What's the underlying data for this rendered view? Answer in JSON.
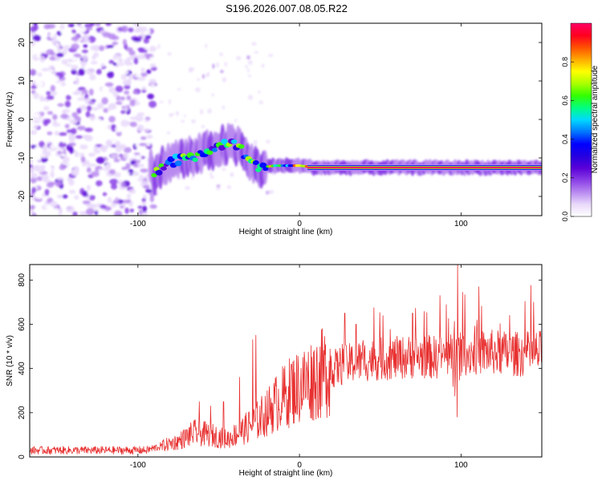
{
  "title": "S196.2026.007.08.05.R22",
  "chart_data": [
    {
      "type": "heatmap",
      "xlabel": "Height of straight line (km)",
      "ylabel": "Frequency (Hz)",
      "xlim": [
        -167,
        150
      ],
      "ylim": [
        -25,
        25
      ],
      "xticks": [
        -100,
        0,
        100
      ],
      "xtick_labels": [
        "-100",
        "0",
        "100"
      ],
      "yticks": [
        -20,
        -10,
        0,
        10,
        20
      ],
      "ytick_labels": [
        "-20",
        "-10",
        "0",
        "10",
        "20"
      ],
      "colorbar": {
        "label": "Normalized spectral amplitude",
        "range": [
          0,
          1
        ],
        "ticks": [
          0.0,
          0.2,
          0.4,
          0.6,
          0.8
        ],
        "tick_labels": [
          "0.0",
          "0.2",
          "0.4",
          "0.6",
          "0.8"
        ],
        "colormap": [
          "#ffffff",
          "#e9d9fb",
          "#b98af0",
          "#8a3fe6",
          "#5a00d8",
          "#2400e0",
          "#0000ff",
          "#0077ff",
          "#00d8ff",
          "#00ff80",
          "#33ff00",
          "#aaff00",
          "#ffff00",
          "#ffaa00",
          "#ff5000",
          "#ff0020",
          "#ff0066"
        ]
      },
      "regions": [
        {
          "name": "noise",
          "x_range": [
            -167,
            -90
          ],
          "freq_range": [
            -25,
            25
          ],
          "amplitude": 0.05
        },
        {
          "name": "trace",
          "points": [
            [
              -90,
              -14
            ],
            [
              -85,
              -12.5
            ],
            [
              -80,
              -11
            ],
            [
              -70,
              -10
            ],
            [
              -60,
              -9
            ],
            [
              -50,
              -7
            ],
            [
              -40,
              -6.5
            ],
            [
              -35,
              -8.5
            ],
            [
              -30,
              -11.5
            ],
            [
              -25,
              -12.5
            ],
            [
              -15,
              -12
            ],
            [
              0,
              -12
            ],
            [
              10,
              -12.5
            ],
            [
              150,
              -12.5
            ]
          ]
        }
      ]
    },
    {
      "type": "line",
      "xlabel": "Height of straight line (km)",
      "ylabel": "SNR (10 * v/v)",
      "xlim": [
        -167,
        150
      ],
      "ylim": [
        0,
        870
      ],
      "xticks": [
        -100,
        0,
        100
      ],
      "xtick_labels": [
        "-100",
        "0",
        "100"
      ],
      "yticks": [
        0,
        200,
        400,
        600,
        800
      ],
      "ytick_labels": [
        "0",
        "200",
        "400",
        "600",
        "800"
      ],
      "line_color": "#e83030",
      "envelope": [
        [
          -167,
          30
        ],
        [
          -95,
          30
        ],
        [
          -85,
          50
        ],
        [
          -75,
          70
        ],
        [
          -65,
          110
        ],
        [
          -55,
          100
        ],
        [
          -45,
          80
        ],
        [
          -35,
          120
        ],
        [
          -25,
          170
        ],
        [
          -15,
          240
        ],
        [
          -5,
          300
        ],
        [
          5,
          340
        ],
        [
          15,
          380
        ],
        [
          25,
          410
        ],
        [
          35,
          430
        ],
        [
          45,
          440
        ],
        [
          55,
          445
        ],
        [
          65,
          450
        ],
        [
          75,
          455
        ],
        [
          85,
          450
        ],
        [
          95,
          460
        ],
        [
          105,
          470
        ],
        [
          115,
          475
        ],
        [
          125,
          470
        ],
        [
          135,
          465
        ],
        [
          150,
          470
        ]
      ],
      "spikes": [
        [
          -62,
          250
        ],
        [
          -55,
          230
        ],
        [
          -47,
          250
        ],
        [
          -37,
          360
        ],
        [
          -29,
          530
        ],
        [
          -27,
          550
        ],
        [
          -20,
          300
        ],
        [
          -5,
          420
        ],
        [
          28,
          650
        ],
        [
          35,
          600
        ],
        [
          70,
          650
        ],
        [
          87,
          730
        ],
        [
          94,
          400
        ],
        [
          98,
          868
        ],
        [
          99,
          170
        ],
        [
          110,
          620
        ],
        [
          130,
          640
        ],
        [
          145,
          700
        ]
      ]
    }
  ]
}
